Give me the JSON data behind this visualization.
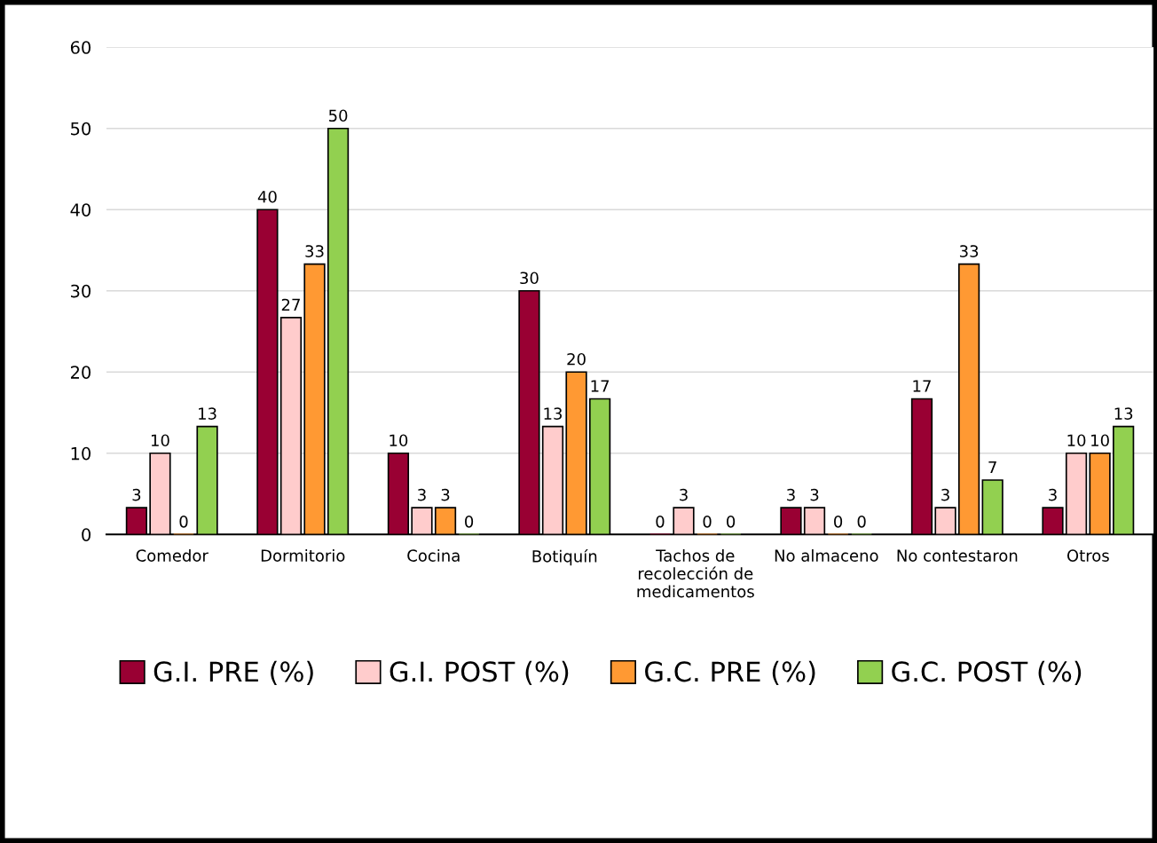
{
  "chart_data": {
    "type": "bar",
    "categories": [
      "Comedor",
      "Dormitorio",
      "Cocina",
      "Botiquín",
      "Tachos de recolección de medicamentos",
      "No almaceno",
      "No contestaron",
      "Otros"
    ],
    "series": [
      {
        "name": "G.I. PRE (%)",
        "color": "#990033",
        "values": [
          3.3,
          40,
          10,
          30,
          0,
          3.3,
          16.7,
          3.3
        ],
        "value_labels": [
          "3",
          "40",
          "10",
          "30",
          "0",
          "3",
          "17",
          "3"
        ]
      },
      {
        "name": "G.I. POST (%)",
        "color": "#ffcccc",
        "values": [
          10,
          26.7,
          3.3,
          13.3,
          3.3,
          3.3,
          3.3,
          10
        ],
        "value_labels": [
          "10",
          "27",
          "3",
          "13",
          "3",
          "3",
          "3",
          "10"
        ]
      },
      {
        "name": "G.C. PRE (%)",
        "color": "#ff9933",
        "values": [
          0,
          33.3,
          3.3,
          20,
          0,
          0,
          33.3,
          10
        ],
        "value_labels": [
          "0",
          "33",
          "3",
          "20",
          "0",
          "0",
          "33",
          "10"
        ]
      },
      {
        "name": "G.C. POST (%)",
        "color": "#92d050",
        "values": [
          13.3,
          50,
          0,
          16.7,
          0,
          0,
          6.7,
          13.3
        ],
        "value_labels": [
          "13",
          "50",
          "0",
          "17",
          "0",
          "0",
          "7",
          "13"
        ]
      }
    ],
    "ylim": [
      0,
      60
    ],
    "yticks": [
      0,
      10,
      20,
      30,
      40,
      50,
      60
    ],
    "grid": "y",
    "legend": "bottom"
  }
}
